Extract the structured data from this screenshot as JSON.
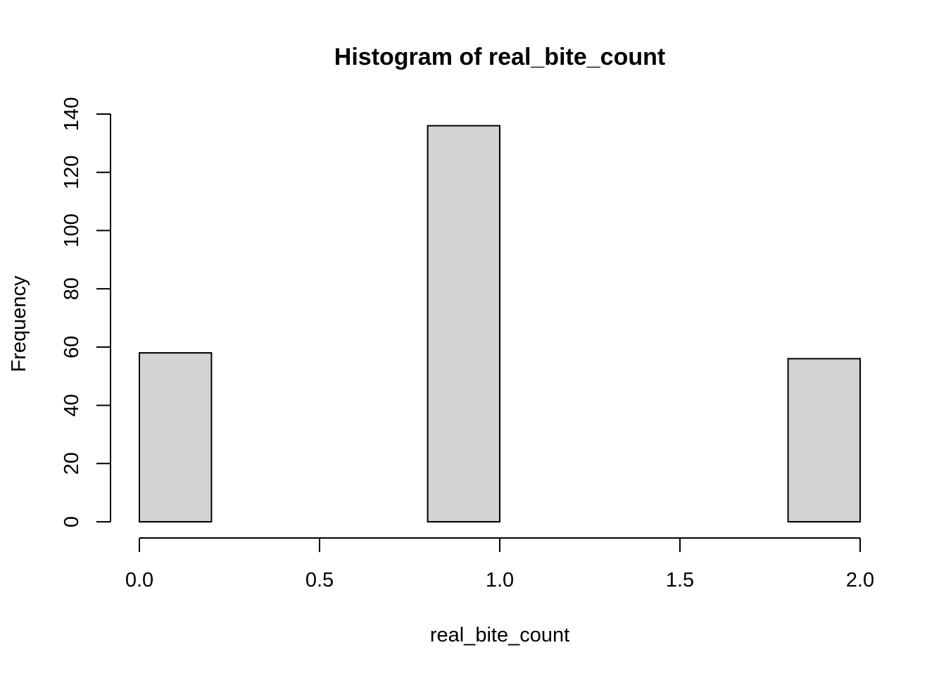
{
  "chart_data": {
    "type": "bar",
    "title": "Histogram of real_bite_count",
    "xlabel": "real_bite_count",
    "ylabel": "Frequency",
    "bins": [
      {
        "x0": 0.0,
        "x1": 0.2,
        "count": 58
      },
      {
        "x0": 0.2,
        "x1": 0.4,
        "count": 0
      },
      {
        "x0": 0.4,
        "x1": 0.6,
        "count": 0
      },
      {
        "x0": 0.6,
        "x1": 0.8,
        "count": 0
      },
      {
        "x0": 0.8,
        "x1": 1.0,
        "count": 136
      },
      {
        "x0": 1.0,
        "x1": 1.2,
        "count": 0
      },
      {
        "x0": 1.2,
        "x1": 1.4,
        "count": 0
      },
      {
        "x0": 1.4,
        "x1": 1.6,
        "count": 0
      },
      {
        "x0": 1.6,
        "x1": 1.8,
        "count": 0
      },
      {
        "x0": 1.8,
        "x1": 2.0,
        "count": 56
      }
    ],
    "xlim": [
      0,
      2
    ],
    "ylim": [
      0,
      140
    ],
    "x_ticks": [
      0.0,
      0.5,
      1.0,
      1.5,
      2.0
    ],
    "x_tick_labels": [
      "0.0",
      "0.5",
      "1.0",
      "1.5",
      "2.0"
    ],
    "y_ticks": [
      0,
      20,
      40,
      60,
      80,
      100,
      120,
      140
    ],
    "y_tick_labels": [
      "0",
      "20",
      "40",
      "60",
      "80",
      "100",
      "120",
      "140"
    ],
    "bar_fill": "#d3d3d3",
    "bar_stroke": "#000000",
    "grid": false,
    "legend": "none"
  }
}
